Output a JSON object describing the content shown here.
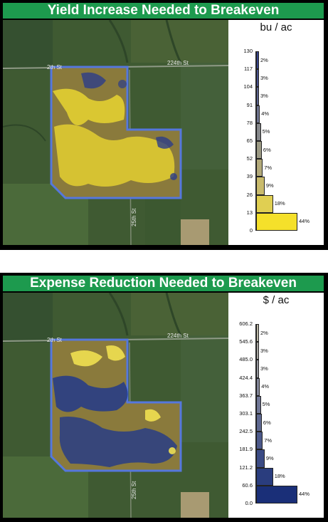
{
  "panels": [
    {
      "title": "Yield Increase Needed to Breakeven",
      "unit": "bu / ac",
      "road_labels": {
        "st224": "224th St",
        "st_top": "2th St",
        "st_bottom": "25th St"
      },
      "chart_data": {
        "type": "bar",
        "orientation": "horizontal-histogram",
        "ticks": [
          "130",
          "117",
          "104",
          "91",
          "78",
          "65",
          "52",
          "39",
          "26",
          "13",
          "0"
        ],
        "bins": [
          {
            "pct": "44%",
            "value": 44
          },
          {
            "pct": "18%",
            "value": 18
          },
          {
            "pct": "9%",
            "value": 9
          },
          {
            "pct": "7%",
            "value": 7
          },
          {
            "pct": "6%",
            "value": 6
          },
          {
            "pct": "5%",
            "value": 5
          },
          {
            "pct": "4%",
            "value": 4
          },
          {
            "pct": "3%",
            "value": 3
          },
          {
            "pct": "3%",
            "value": 3
          },
          {
            "pct": "2%",
            "value": 2
          }
        ],
        "colors": [
          "#f5e02a",
          "#e0cf52",
          "#c9bb6c",
          "#b3aa7a",
          "#9c9a84",
          "#85878a",
          "#6f7590",
          "#5b6390",
          "#48528f",
          "#37448c"
        ]
      }
    },
    {
      "title": "Expense Reduction Needed to Breakeven",
      "unit": "$ / ac",
      "road_labels": {
        "st224": "224th St",
        "st_top": "2th St",
        "st_bottom": "25th St"
      },
      "chart_data": {
        "type": "bar",
        "orientation": "horizontal-histogram",
        "ticks": [
          "606.2",
          "545.6",
          "485.0",
          "424.4",
          "363.7",
          "303.1",
          "242.5",
          "181.9",
          "121.2",
          "60.6",
          "0.0"
        ],
        "bins": [
          {
            "pct": "44%",
            "value": 44
          },
          {
            "pct": "18%",
            "value": 18
          },
          {
            "pct": "9%",
            "value": 9
          },
          {
            "pct": "7%",
            "value": 7
          },
          {
            "pct": "6%",
            "value": 6
          },
          {
            "pct": "5%",
            "value": 5
          },
          {
            "pct": "4%",
            "value": 4
          },
          {
            "pct": "3%",
            "value": 3
          },
          {
            "pct": "3%",
            "value": 3
          },
          {
            "pct": "2%",
            "value": 2
          }
        ],
        "colors": [
          "#1a2f78",
          "#2a3d7e",
          "#3b4b84",
          "#4c598a",
          "#5e6890",
          "#707796",
          "#83879a",
          "#96979e",
          "#a9a7a2",
          "#bcb8a6"
        ]
      }
    }
  ]
}
